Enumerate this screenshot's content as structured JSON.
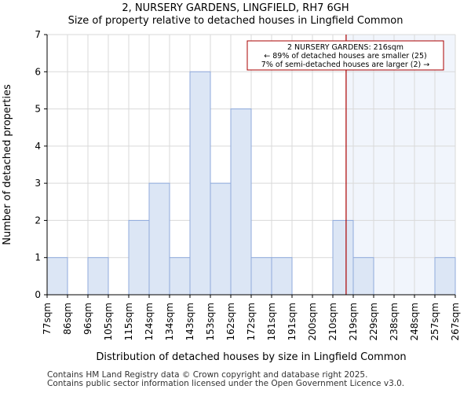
{
  "chart_data": {
    "type": "histogram",
    "title": "2, NURSERY GARDENS, LINGFIELD, RH7 6GH",
    "subtitle": "Size of property relative to detached houses in Lingfield Common",
    "xlabel": "Distribution of detached houses by size in Lingfield Common",
    "ylabel": "Number of detached properties",
    "categories": [
      "77sqm",
      "86sqm",
      "96sqm",
      "105sqm",
      "115sqm",
      "124sqm",
      "134sqm",
      "143sqm",
      "153sqm",
      "162sqm",
      "172sqm",
      "181sqm",
      "191sqm",
      "200sqm",
      "210sqm",
      "219sqm",
      "229sqm",
      "238sqm",
      "248sqm",
      "257sqm",
      "267sqm"
    ],
    "values": [
      1,
      0,
      1,
      0,
      2,
      3,
      1,
      6,
      3,
      5,
      1,
      1,
      0,
      0,
      2,
      1,
      0,
      0,
      0,
      1
    ],
    "ylim": [
      0,
      7
    ],
    "yticks": [
      0,
      1,
      2,
      3,
      4,
      5,
      6,
      7
    ],
    "marker": {
      "value_sqm": 216,
      "bin_index_position": 14.65,
      "line_color": "#aa0000"
    },
    "annotation": {
      "line1": "2 NURSERY GARDENS: 216sqm",
      "line2": "← 89% of detached houses are smaller (25)",
      "line3": "7% of semi-detached houses are larger (2) →"
    },
    "colors": {
      "bar_fill": "#dce6f5",
      "bar_stroke": "#8faadc",
      "highlight_fill": "#f1f5fc",
      "grid": "#d9d9d9"
    }
  },
  "footer": {
    "line1": "Contains HM Land Registry data © Crown copyright and database right 2025.",
    "line2": "Contains public sector information licensed under the Open Government Licence v3.0."
  }
}
